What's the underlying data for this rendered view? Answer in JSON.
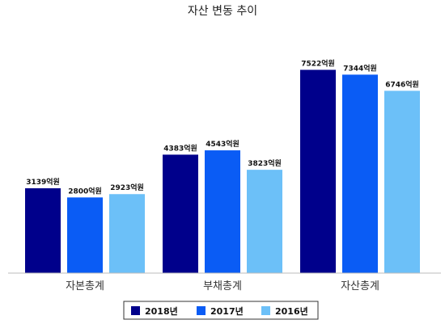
{
  "chart_data": {
    "type": "bar",
    "title": "자산 변동 추이",
    "categories": [
      "자본총계",
      "부채총계",
      "자산총계"
    ],
    "unit_suffix": "억원",
    "series": [
      {
        "name": "2018년",
        "color": "#00008b",
        "values": [
          3139,
          4383,
          7522
        ]
      },
      {
        "name": "2017년",
        "color": "#0a5cf5",
        "values": [
          2800,
          4543,
          7344
        ]
      },
      {
        "name": "2016년",
        "color": "#6cc0f8",
        "values": [
          2923,
          3823,
          6746
        ]
      }
    ],
    "ylim": [
      0,
      9000
    ],
    "grid": false,
    "legend_position": "bottom"
  }
}
